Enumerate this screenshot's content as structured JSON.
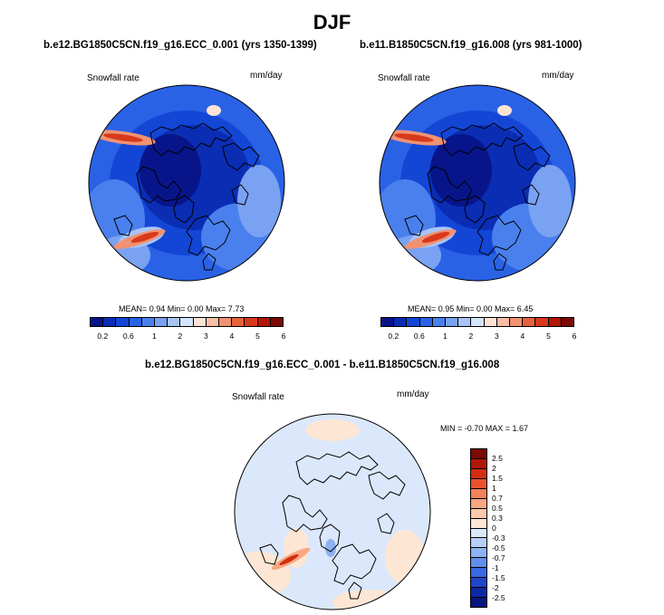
{
  "title": "DJF",
  "panels": [
    {
      "case_title": "b.e12.BG1850C5CN.f19_g16.ECC_0.001 (yrs 1350-1399)",
      "variable": "Snowfall rate",
      "units": "mm/day",
      "stats": "MEAN=   0.94  Min=   0.00  Max=   7.73"
    },
    {
      "case_title": "b.e11.B1850C5CN.f19_g16.008 (yrs 981-1000)",
      "variable": "Snowfall rate",
      "units": "mm/day",
      "stats": "MEAN=   0.95  Min=   0.00  Max=   6.45"
    }
  ],
  "abs_colorbar": {
    "colors": [
      "#08158a",
      "#0a2db4",
      "#1446d6",
      "#2a62e6",
      "#4a80ee",
      "#7aa2f2",
      "#a8c4f6",
      "#d4e4fa",
      "#fde3d4",
      "#f8bea6",
      "#f19273",
      "#e8613d",
      "#d73a1b",
      "#b01708",
      "#7a0a02"
    ],
    "tick_labels": [
      "0.2",
      "0.6",
      "1",
      "2",
      "3",
      "4",
      "5",
      "6"
    ]
  },
  "diff_panel": {
    "title": "b.e12.BG1850C5CN.f19_g16.ECC_0.001 - b.e11.B1850C5CN.f19_g16.008",
    "variable": "Snowfall rate",
    "units": "mm/day",
    "stats": "MIN = -0.70 MAX =   1.67"
  },
  "diff_colorbar": {
    "colors": [
      "#7a0a02",
      "#b01708",
      "#d22e12",
      "#e8532e",
      "#f2825c",
      "#f7a882",
      "#fbc9ab",
      "#fde6d4",
      "#dbe8fb",
      "#b6cff7",
      "#8db1f1",
      "#628eea",
      "#3a68e0",
      "#1e45c8",
      "#0d28a6",
      "#07157f"
    ],
    "tick_labels": [
      "2.5",
      "2",
      "1.5",
      "1",
      "0.7",
      "0.5",
      "0.3",
      "0",
      "-0.3",
      "-0.5",
      "-0.7",
      "-1",
      "-1.5",
      "-2",
      "-2.5"
    ]
  }
}
